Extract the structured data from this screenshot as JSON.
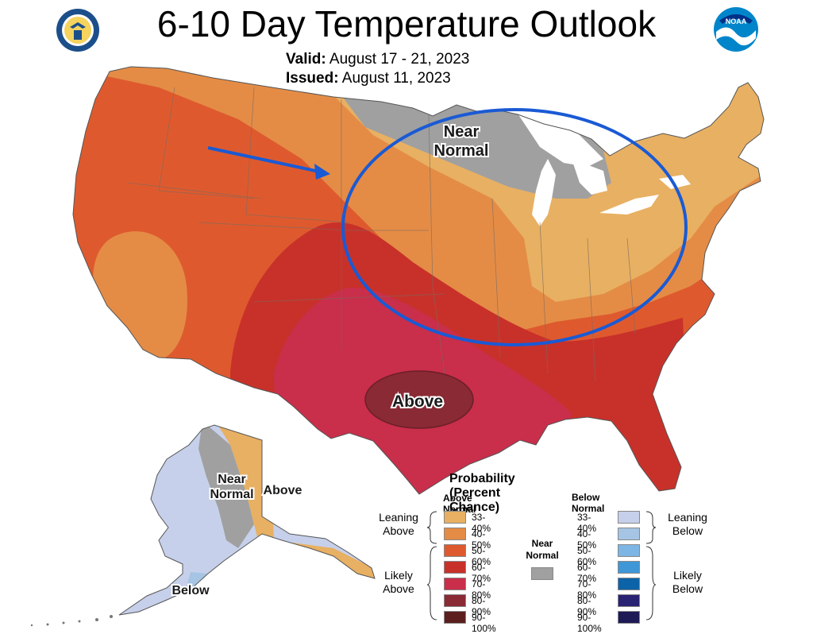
{
  "header": {
    "title": "6-10 Day Temperature Outlook",
    "valid_label": "Valid:",
    "valid_value": "August 17 - 21, 2023",
    "issued_label": "Issued:",
    "issued_value": "August 11, 2023"
  },
  "logos": {
    "left": "department-of-commerce-seal",
    "right": "noaa-logo",
    "right_text": "NOAA"
  },
  "map": {
    "regions": [
      "CONUS",
      "Alaska"
    ],
    "labels": {
      "near_normal": "Near Normal",
      "above": "Above",
      "ak_near_normal": "Near Normal",
      "ak_above": "Above",
      "ak_below": "Below"
    }
  },
  "legend": {
    "title": "Probability (Percent Chance)",
    "above_header": "Above Normal",
    "below_header": "Below Normal",
    "near_header": "Near Normal",
    "leaning_above": "Leaning Above",
    "likely_above": "Likely Above",
    "leaning_below": "Leaning Below",
    "likely_below": "Likely Below",
    "above": [
      {
        "range": "33-40%",
        "color": "#E8B062"
      },
      {
        "range": "40-50%",
        "color": "#E48C46"
      },
      {
        "range": "50-60%",
        "color": "#DE5A2E"
      },
      {
        "range": "60-70%",
        "color": "#C8312A"
      },
      {
        "range": "70-80%",
        "color": "#C92E4A"
      },
      {
        "range": "80-90%",
        "color": "#8A2A35"
      },
      {
        "range": "90-100%",
        "color": "#5C1F1E"
      }
    ],
    "below": [
      {
        "range": "33-40%",
        "color": "#C6D0EA"
      },
      {
        "range": "40-50%",
        "color": "#A6C4E4"
      },
      {
        "range": "50-60%",
        "color": "#7DB5E4"
      },
      {
        "range": "60-70%",
        "color": "#3F97D8"
      },
      {
        "range": "70-80%",
        "color": "#0D63A8"
      },
      {
        "range": "80-90%",
        "color": "#2A2272"
      },
      {
        "range": "90-100%",
        "color": "#1E1A55"
      }
    ],
    "near_color": "#A0A0A0"
  }
}
